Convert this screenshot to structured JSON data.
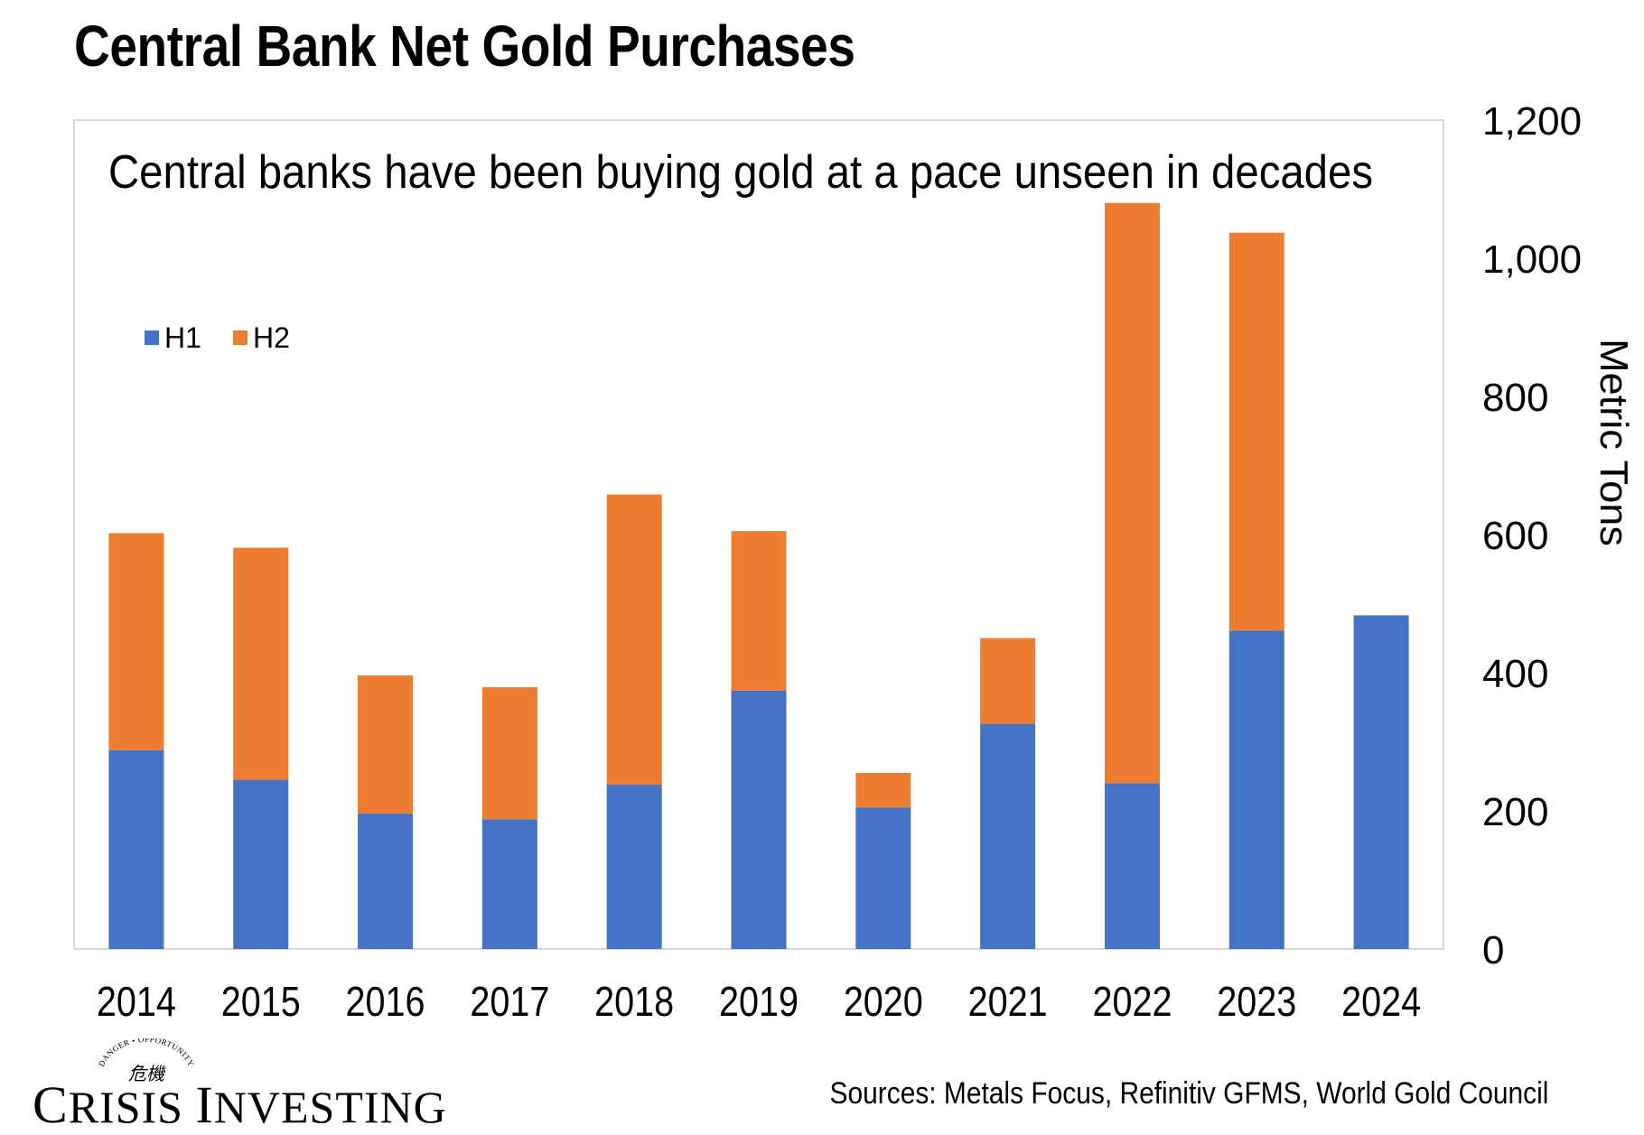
{
  "title": "Central Bank Net Gold Purchases",
  "sources": "Sources: Metals Focus, Refinitiv GFMS, World Gold Council",
  "logo": {
    "text": "Crisis Investing",
    "tagline": "DANGER • OPPORTUNITY",
    "glyphs": "危機"
  },
  "colors": {
    "h1": "#4472C4",
    "h2": "#ED7D31",
    "frame": "#D9D9D9"
  },
  "chart_data": {
    "type": "bar",
    "stacked": true,
    "annotation": "Central banks have been buying gold at a pace unseen in decades",
    "categories": [
      "2014",
      "2015",
      "2016",
      "2017",
      "2018",
      "2019",
      "2020",
      "2021",
      "2022",
      "2023",
      "2024"
    ],
    "series": [
      {
        "name": "H1",
        "color": "#4472C4",
        "values": [
          288,
          245,
          196,
          188,
          238,
          374,
          205,
          326,
          240,
          461,
          483
        ]
      },
      {
        "name": "H2",
        "color": "#ED7D31",
        "values": [
          314,
          336,
          200,
          191,
          420,
          231,
          50,
          124,
          840,
          576,
          null
        ]
      }
    ],
    "ylabel": "Metric Tons",
    "yaxis_side": "right",
    "ylim": [
      0,
      1200
    ],
    "yticks": [
      0,
      200,
      400,
      600,
      800,
      1000,
      1200
    ],
    "ytick_labels": [
      "0",
      "200",
      "400",
      "600",
      "800",
      "1,000",
      "1,200"
    ],
    "legend_position": "top-left",
    "grid": false
  }
}
